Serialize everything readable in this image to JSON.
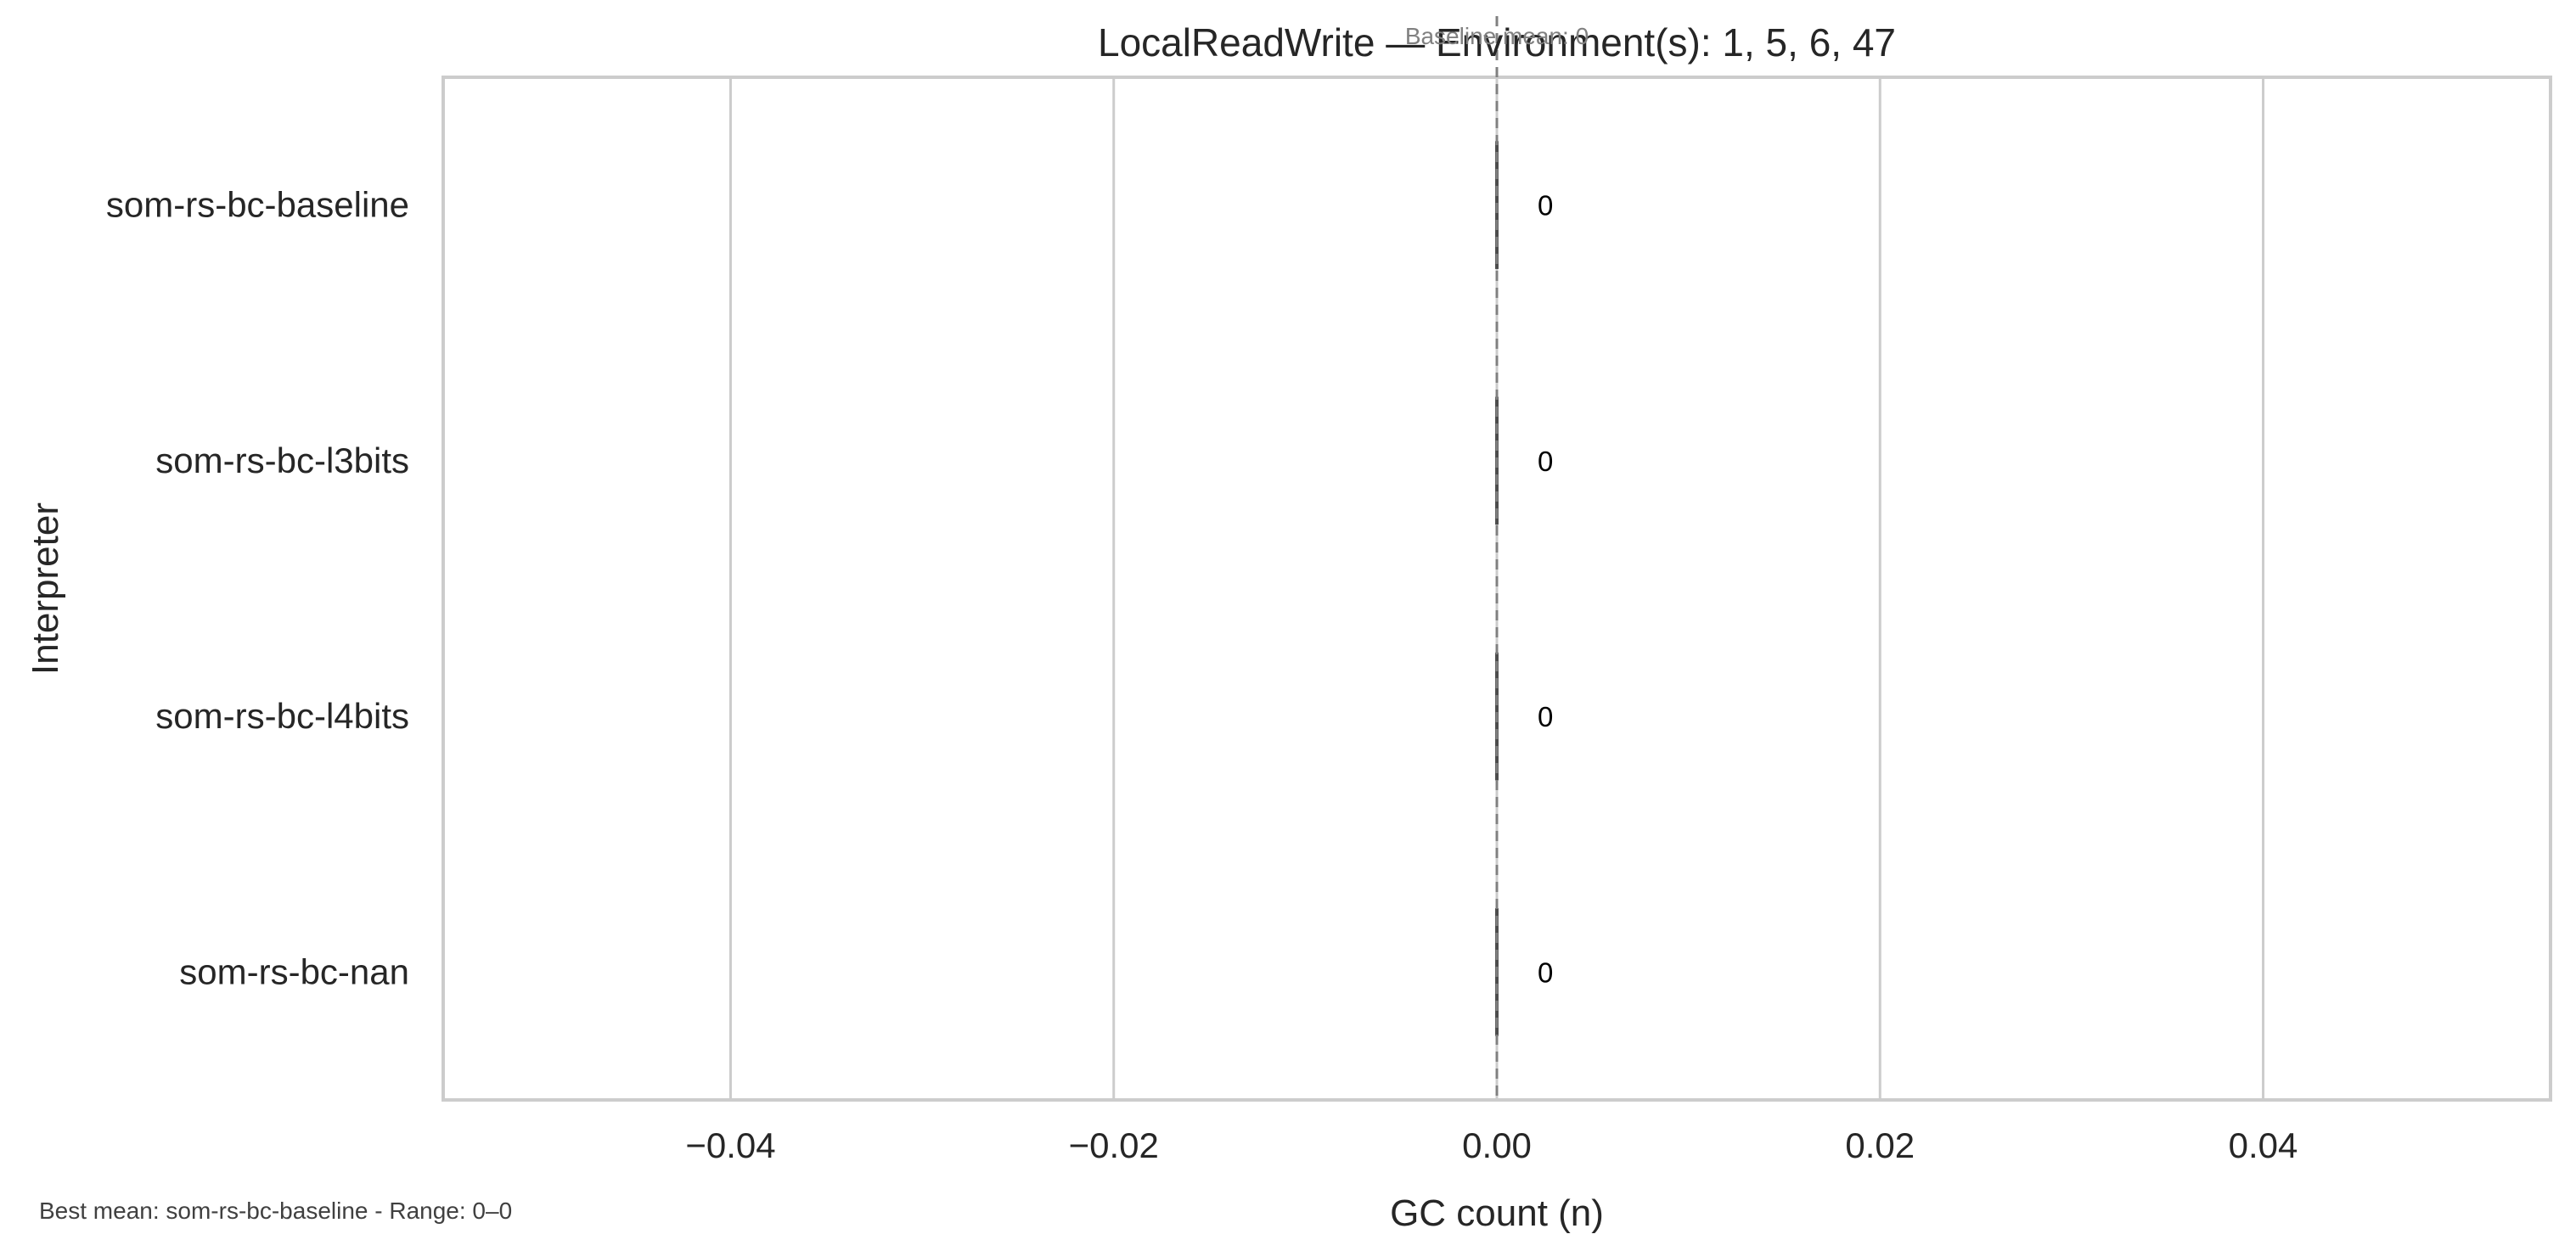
{
  "chart_data": {
    "type": "bar",
    "orientation": "horizontal",
    "title": "LocalReadWrite — Environment(s): 1, 5, 6, 47",
    "xlabel": "GC count (n)",
    "ylabel": "Interpreter",
    "categories": [
      "som-rs-bc-baseline",
      "som-rs-bc-l3bits",
      "som-rs-bc-l4bits",
      "som-rs-bc-nan"
    ],
    "values": [
      0,
      0,
      0,
      0
    ],
    "data_labels": [
      "0",
      "0",
      "0",
      "0"
    ],
    "xlim": [
      -0.055,
      0.055
    ],
    "xticks": [
      -0.04,
      -0.02,
      0.0,
      0.02,
      0.04
    ],
    "xtick_labels": [
      "−0.04",
      "−0.02",
      "0.00",
      "0.02",
      "0.04"
    ],
    "grid": "vertical",
    "baseline": {
      "value": 0,
      "label": "Baseline mean: 0"
    },
    "footnote": "Best mean: som-rs-bc-baseline - Range: 0–0",
    "colors": {
      "bar": "#4d4d4d",
      "grid": "#cccccc",
      "frame": "#cccccc",
      "baseline_line": "#808080",
      "text": "#262626"
    }
  }
}
